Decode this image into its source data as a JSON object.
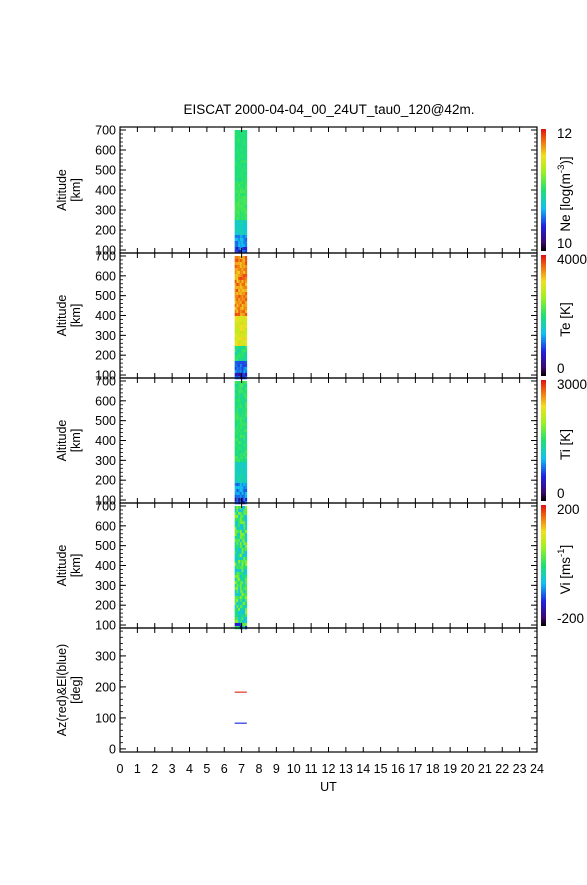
{
  "title": "EISCAT 2000-04-04_00_24UT_tau0_120@42m.",
  "chart_data": [
    {
      "type": "heatmap",
      "ylabel": [
        "Altitude",
        "[km]"
      ],
      "yticks": [
        100,
        200,
        300,
        400,
        500,
        600,
        700
      ],
      "ylim": [
        85,
        715
      ],
      "data_x": [
        6.6,
        7.3
      ],
      "data_ylim": [
        90,
        700
      ],
      "colorbar": {
        "label": "Ne [log(m^-3)]",
        "label_main": "Ne [log(m",
        "label_exp": "-3",
        "label_end": ")]",
        "max": "12",
        "min": "10"
      },
      "profile": "ne"
    },
    {
      "type": "heatmap",
      "ylabel": [
        "Altitude",
        "[km]"
      ],
      "yticks": [
        100,
        200,
        300,
        400,
        500,
        600,
        700
      ],
      "ylim": [
        85,
        715
      ],
      "data_x": [
        6.6,
        7.3
      ],
      "data_ylim": [
        90,
        700
      ],
      "colorbar": {
        "label": "Te [K]",
        "label_main": "Te [K]",
        "label_exp": "",
        "label_end": "",
        "max": "4000",
        "min": "0"
      },
      "profile": "te"
    },
    {
      "type": "heatmap",
      "ylabel": [
        "Altitude",
        "[km]"
      ],
      "yticks": [
        100,
        200,
        300,
        400,
        500,
        600,
        700
      ],
      "ylim": [
        85,
        715
      ],
      "data_x": [
        6.6,
        7.3
      ],
      "data_ylim": [
        90,
        700
      ],
      "colorbar": {
        "label": "Ti [K]",
        "label_main": "Ti [K]",
        "label_exp": "",
        "label_end": "",
        "max": "3000",
        "min": "0"
      },
      "profile": "ti"
    },
    {
      "type": "heatmap",
      "ylabel": [
        "Altitude",
        "[km]"
      ],
      "yticks": [
        100,
        200,
        300,
        400,
        500,
        600,
        700
      ],
      "ylim": [
        85,
        715
      ],
      "data_x": [
        6.6,
        7.3
      ],
      "data_ylim": [
        90,
        700
      ],
      "colorbar": {
        "label": "Vi [ms^-1]",
        "label_main": "Vi [ms",
        "label_exp": "-1",
        "label_end": "]",
        "max": "200",
        "min": "-200"
      },
      "profile": "vi"
    },
    {
      "type": "line",
      "ylabel": [
        "Az(red)&El(blue)",
        "[deg]"
      ],
      "yticks": [
        0,
        100,
        200,
        300
      ],
      "ylim": [
        -10,
        390
      ],
      "series": [
        {
          "color": "#e83020",
          "x": [
            6.6,
            7.3
          ],
          "values": [
            183,
            183
          ]
        },
        {
          "color": "#2030e0",
          "x": [
            6.6,
            7.3
          ],
          "values": [
            83,
            83
          ]
        }
      ]
    }
  ],
  "xaxis": {
    "label": "UT",
    "xlim": [
      0,
      24
    ],
    "ticks": [
      "0",
      "1",
      "2",
      "3",
      "4",
      "5",
      "6",
      "7",
      "8",
      "9",
      "10",
      "11",
      "12",
      "13",
      "14",
      "15",
      "16",
      "17",
      "18",
      "19",
      "20",
      "21",
      "22",
      "23",
      "24"
    ]
  }
}
